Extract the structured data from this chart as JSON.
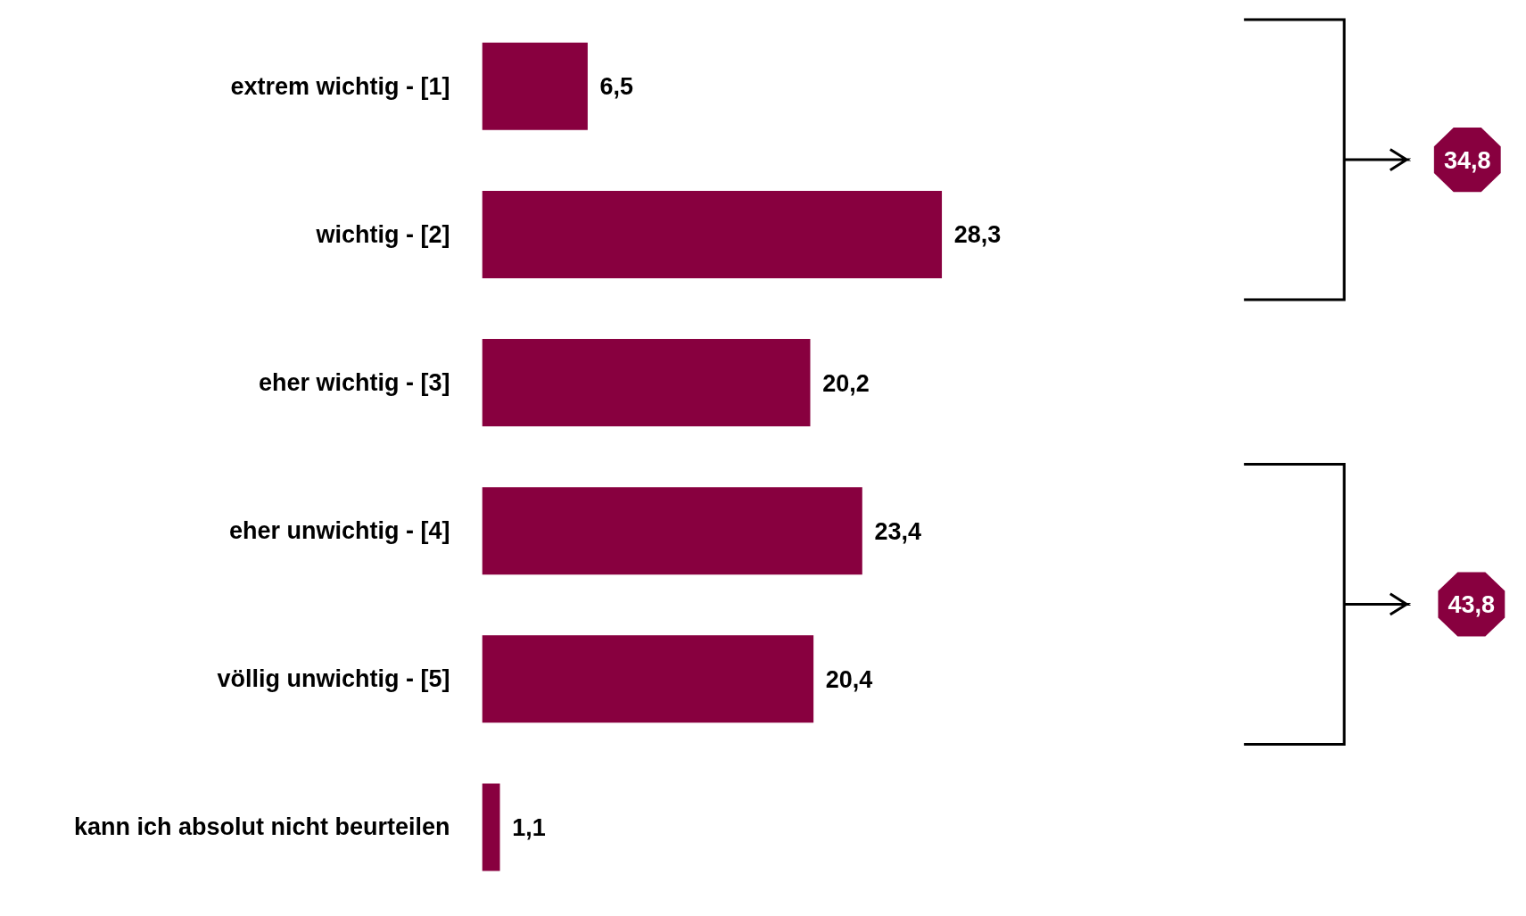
{
  "chart_data": {
    "type": "bar",
    "orientation": "horizontal",
    "categories": [
      "extrem wichtig - [1]",
      "wichtig - [2]",
      "eher wichtig - [3]",
      "eher unwichtig - [4]",
      "völlig unwichtig - [5]",
      "kann ich absolut nicht beurteilen"
    ],
    "values": [
      6.5,
      28.3,
      20.2,
      23.4,
      20.4,
      1.1
    ],
    "value_labels": [
      "6,5",
      "28,3",
      "20,2",
      "23,4",
      "20,4",
      "1,1"
    ],
    "color": "#88003f",
    "annotations": [
      "34,8",
      "43,8"
    ],
    "grid": false
  }
}
